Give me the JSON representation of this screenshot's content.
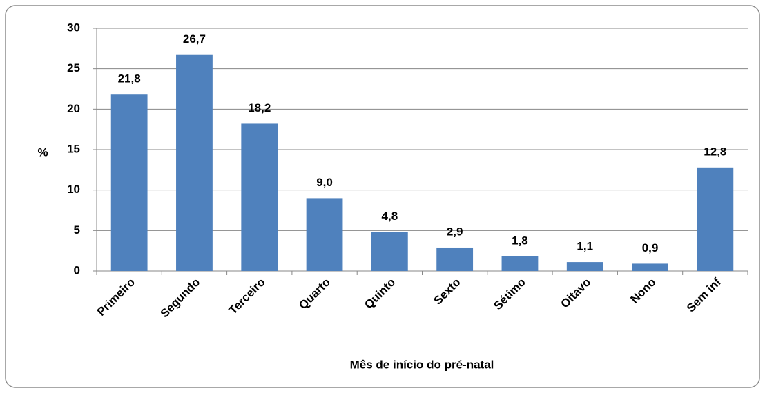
{
  "chart_data": {
    "type": "bar",
    "x_label": "Mês de início do pré-natal",
    "y_label": "%",
    "categories": [
      "Primeiro",
      "Segundo",
      "Terceiro",
      "Quarto",
      "Quinto",
      "Sexto",
      "Sétimo",
      "Oitavo",
      "Nono",
      "Sem inf"
    ],
    "values": [
      21.8,
      26.7,
      18.2,
      9.0,
      4.8,
      2.9,
      1.8,
      1.1,
      0.9,
      12.8
    ],
    "value_labels": [
      "21,8",
      "26,7",
      "18,2",
      "9,0",
      "4,8",
      "2,9",
      "1,8",
      "1,1",
      "0,9",
      "12,8"
    ],
    "color": "#4f81bd",
    "ylim": [
      0,
      30
    ],
    "yticks": [
      0,
      5,
      10,
      15,
      20,
      25,
      30
    ],
    "grid": true
  }
}
